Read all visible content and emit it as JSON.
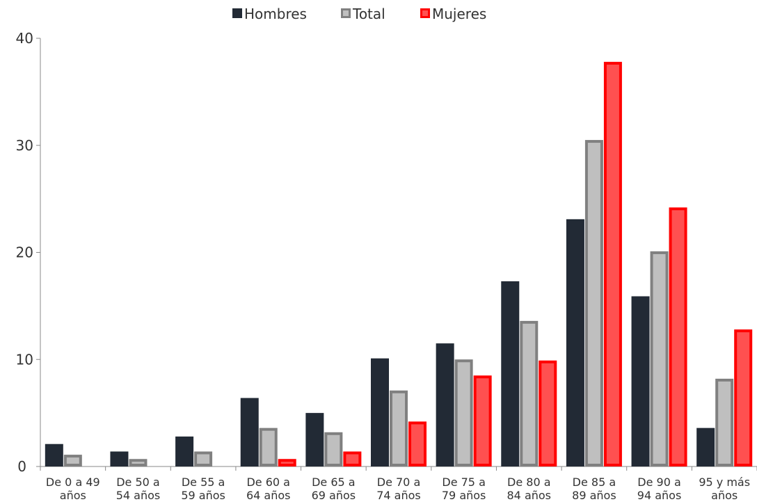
{
  "chart_data": {
    "type": "bar",
    "categories": [
      [
        "De 0 a 49",
        "años"
      ],
      [
        "De 50 a",
        "54 años"
      ],
      [
        "De 55 a",
        "59 años"
      ],
      [
        "De 60 a",
        "64 años"
      ],
      [
        "De 65 a",
        "69 años"
      ],
      [
        "De 70 a",
        "74 años"
      ],
      [
        "De 75 a",
        "79 años"
      ],
      [
        "De 80 a",
        "84 años"
      ],
      [
        "De 85 a",
        "89 años"
      ],
      [
        "De 90 a",
        "94 años"
      ],
      [
        "95 y más",
        "años"
      ]
    ],
    "series": [
      {
        "name": "Hombres",
        "values": [
          2.1,
          1.4,
          2.8,
          6.4,
          5.0,
          10.1,
          11.5,
          17.3,
          23.1,
          15.9,
          3.6
        ],
        "fill": "#222a35",
        "stroke": "#222a35"
      },
      {
        "name": "Total",
        "values": [
          1.1,
          0.7,
          1.4,
          3.6,
          3.2,
          7.1,
          10.0,
          13.6,
          30.5,
          20.1,
          8.2
        ],
        "fill": "#bfbfbf",
        "stroke": "#808080"
      },
      {
        "name": "Mujeres",
        "values": [
          0,
          0,
          0,
          0.7,
          1.4,
          4.2,
          8.5,
          9.9,
          37.8,
          24.2,
          12.8
        ],
        "fill": "#ff5050",
        "stroke": "#ff0000"
      }
    ],
    "yticks": [
      0,
      10,
      20,
      30,
      40
    ],
    "ylim": [
      0,
      40
    ],
    "legend_position": "top-center",
    "grid": false
  }
}
